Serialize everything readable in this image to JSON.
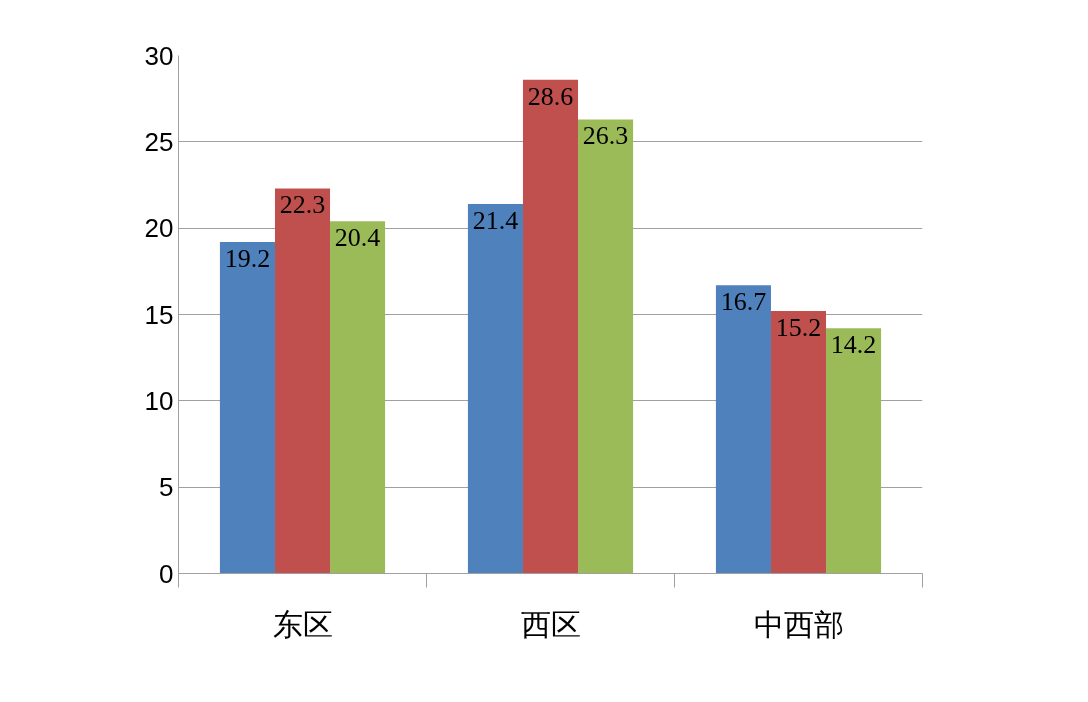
{
  "chart_data": {
    "type": "bar",
    "categories": [
      "东区",
      "西区",
      "中西部"
    ],
    "series": [
      {
        "color": "#4f81bd",
        "values": [
          19.2,
          21.4,
          16.7
        ]
      },
      {
        "color": "#c0504d",
        "values": [
          22.3,
          28.6,
          15.2
        ]
      },
      {
        "color": "#9bbb59",
        "values": [
          20.4,
          26.3,
          14.2
        ]
      }
    ],
    "ylim": [
      0,
      30
    ],
    "yticks": [
      0,
      5,
      10,
      15,
      20,
      25,
      30
    ],
    "grid": "y",
    "data_labels": true
  }
}
